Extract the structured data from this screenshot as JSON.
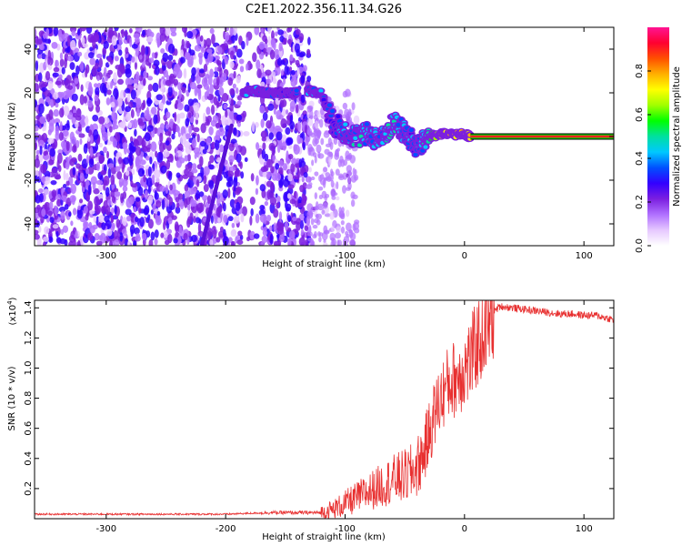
{
  "title": "C2E1.2022.356.11.34.G26",
  "colorbar": {
    "label": "Normalized spectral amplitude",
    "ticks": [
      0.0,
      0.2,
      0.4,
      0.6,
      0.8
    ],
    "tick_labels": [
      "0.0",
      "0.2",
      "0.4",
      "0.6",
      "0.8"
    ],
    "colors": [
      "#ffffff",
      "#e6c8ff",
      "#b070ff",
      "#7b1fe0",
      "#3300ff",
      "#0050ff",
      "#00c8ff",
      "#00e0a0",
      "#00ff00",
      "#a0ff00",
      "#ffff00",
      "#ffb000",
      "#ff5000",
      "#ff0030",
      "#ff1493"
    ]
  },
  "chart_data": [
    {
      "type": "heatmap",
      "title": "C2E1.2022.356.11.34.G26",
      "xlabel": "Height of straight line (km)",
      "ylabel": "Frequency (Hz)",
      "xlim": [
        -360,
        125
      ],
      "ylim": [
        -50,
        50
      ],
      "x_ticks": [
        -300,
        -200,
        -100,
        0,
        100
      ],
      "x_tick_labels": [
        "-300",
        "-200",
        "-100",
        "0",
        "100"
      ],
      "y_ticks": [
        -40,
        -20,
        0,
        20,
        40
      ],
      "y_tick_labels": [
        "-40",
        "-20",
        "0",
        "20",
        "40"
      ],
      "noise_band_x": [
        -360,
        -130
      ],
      "signal_ridge": {
        "x": [
          -185,
          -175,
          -165,
          -155,
          -145,
          -130,
          -120,
          -110,
          -100,
          -90,
          -80,
          -70,
          -60,
          -50,
          -40,
          -35,
          -30,
          -20,
          -10,
          0,
          5,
          20,
          50,
          100,
          125
        ],
        "freq": [
          20,
          21,
          20,
          20,
          20,
          21,
          20,
          6,
          2,
          0,
          1,
          -2,
          6,
          2,
          -5,
          -3,
          0,
          1,
          1,
          1,
          0,
          0,
          0,
          0,
          0
        ],
        "amplitude": [
          0.35,
          0.38,
          0.35,
          0.33,
          0.32,
          0.38,
          0.35,
          0.3,
          0.4,
          0.42,
          0.4,
          0.42,
          0.45,
          0.4,
          0.35,
          0.42,
          0.55,
          0.72,
          0.78,
          0.75,
          0.8,
          0.88,
          0.9,
          0.9,
          0.9
        ]
      }
    },
    {
      "type": "line",
      "xlabel": "Height of straight line (km)",
      "ylabel": "SNR (10 * v/v)",
      "y_multiplier": "(x10",
      "y_multiplier_exp": "4",
      "y_multiplier_close": ")",
      "xlim": [
        -360,
        125
      ],
      "ylim": [
        0.0,
        1.45
      ],
      "x_ticks": [
        -300,
        -200,
        -100,
        0,
        100
      ],
      "x_tick_labels": [
        "-300",
        "-200",
        "-100",
        "0",
        "100"
      ],
      "y_ticks": [
        0.2,
        0.4,
        0.6,
        0.8,
        1.0,
        1.2,
        1.4
      ],
      "y_tick_labels": [
        "0.2",
        "0.4",
        "0.6",
        "0.8",
        "1.0",
        "1.2",
        "1.4"
      ],
      "series": [
        {
          "color": "#e83030",
          "x": [
            -360,
            -300,
            -250,
            -200,
            -165,
            -150,
            -130,
            -120,
            -110,
            -100,
            -90,
            -80,
            -70,
            -60,
            -50,
            -45,
            -40,
            -35,
            -30,
            -25,
            -20,
            -15,
            -10,
            -5,
            0,
            5,
            10,
            15,
            20,
            25,
            30,
            40,
            50,
            60,
            70,
            80,
            90,
            100,
            110,
            120,
            125
          ],
          "values": [
            0.03,
            0.03,
            0.03,
            0.03,
            0.04,
            0.04,
            0.04,
            0.04,
            0.06,
            0.1,
            0.14,
            0.18,
            0.22,
            0.26,
            0.28,
            0.3,
            0.34,
            0.42,
            0.55,
            0.7,
            0.8,
            0.88,
            0.92,
            0.95,
            1.0,
            1.05,
            1.15,
            1.22,
            1.3,
            1.38,
            1.41,
            1.4,
            1.39,
            1.38,
            1.37,
            1.36,
            1.36,
            1.35,
            1.35,
            1.33,
            1.32
          ]
        }
      ]
    }
  ]
}
